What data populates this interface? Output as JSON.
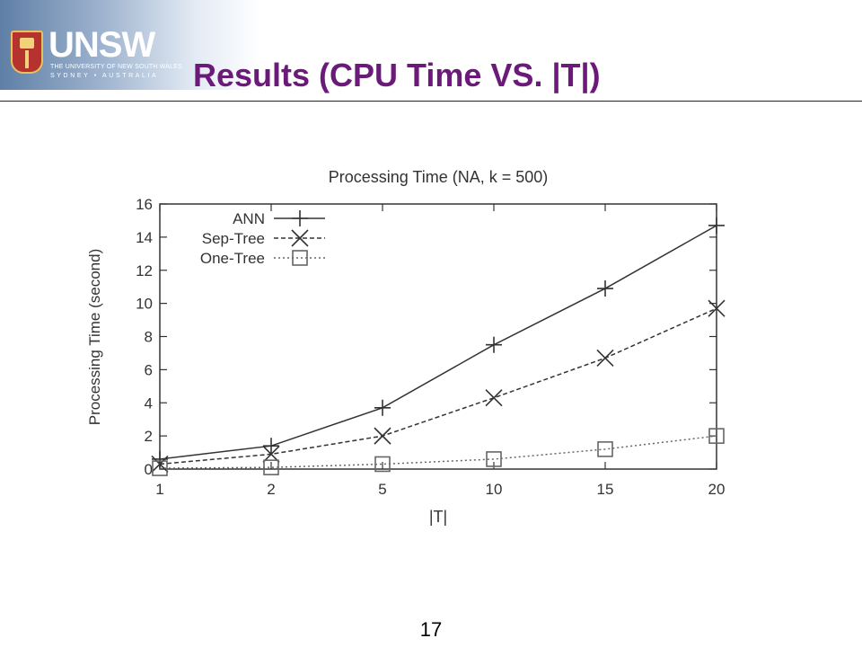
{
  "header": {
    "logo_word": "UNSW",
    "logo_line1": "THE UNIVERSITY OF NEW SOUTH WALES",
    "logo_line2": "SYDNEY • AUSTRALIA",
    "title": "Results (CPU Time VS. |T|)"
  },
  "footer": {
    "page_number": "17"
  },
  "chart_data": {
    "type": "line",
    "title": "Processing Time (NA, k = 500)",
    "xlabel": "|T|",
    "ylabel": "Processing Time (second)",
    "categories": [
      "1",
      "2",
      "5",
      "10",
      "15",
      "20"
    ],
    "ylim": [
      0,
      16
    ],
    "yticks": [
      0,
      2,
      4,
      6,
      8,
      10,
      12,
      14,
      16
    ],
    "grid": false,
    "legend_position": "top-left",
    "series": [
      {
        "name": "ANN",
        "marker": "plus",
        "line": "solid",
        "color": "#333333",
        "values": [
          0.6,
          1.4,
          3.7,
          7.5,
          10.9,
          14.7
        ]
      },
      {
        "name": "Sep-Tree",
        "marker": "cross",
        "line": "dashed",
        "color": "#333333",
        "values": [
          0.3,
          0.9,
          2.0,
          4.3,
          6.7,
          9.7
        ]
      },
      {
        "name": "One-Tree",
        "marker": "square",
        "line": "dotted",
        "color": "#666666",
        "values": [
          0.05,
          0.1,
          0.3,
          0.6,
          1.2,
          2.0
        ]
      }
    ]
  }
}
